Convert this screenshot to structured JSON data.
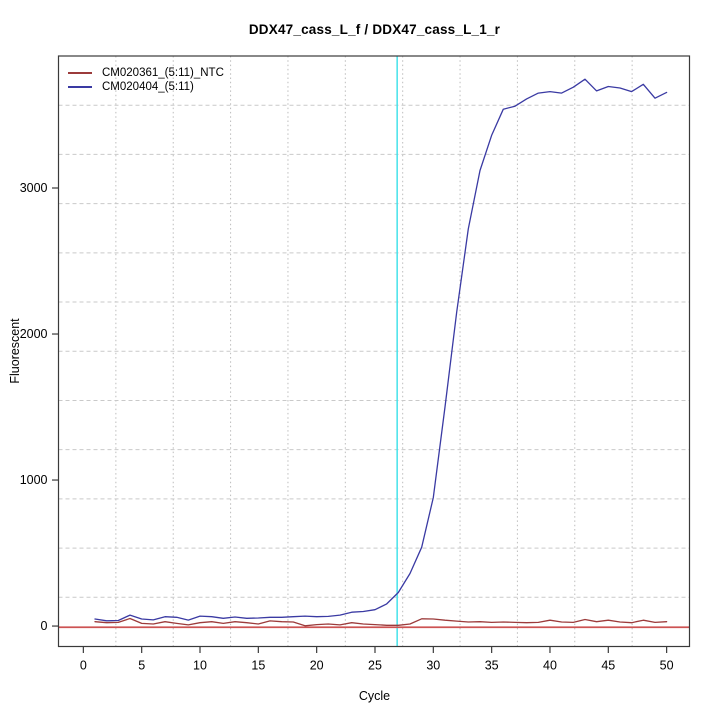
{
  "title": "DDX47_cass_L_f / DDX47_cass_L_1_r",
  "chart_data": {
    "type": "line",
    "title": "DDX47_cass_L_f / DDX47_cass_L_1_r",
    "xlabel": "Cycle",
    "ylabel": "Fluorescent",
    "x_ticks": [
      0,
      5,
      10,
      15,
      20,
      25,
      30,
      35,
      40,
      45,
      50
    ],
    "y_ticks": [
      0,
      1000,
      2000,
      3000
    ],
    "xlim": [
      -2.13,
      51.96
    ],
    "ylim": [
      -140,
      3904
    ],
    "grid": {
      "on": true,
      "vertical_cells": 11,
      "horizontal_cells": 12,
      "v_color": "#bdbdbd",
      "h_color": "#c9c9c9"
    },
    "threshold_line": {
      "value": 0,
      "color": "#cd5353"
    },
    "ct_line": {
      "cycle": 26.9,
      "color": "#45e2ea"
    },
    "legend_position": "top-left",
    "x": [
      1,
      2,
      3,
      4,
      5,
      6,
      7,
      8,
      9,
      10,
      11,
      12,
      13,
      14,
      15,
      16,
      17,
      18,
      19,
      20,
      21,
      22,
      23,
      24,
      25,
      26,
      27,
      28,
      29,
      30,
      31,
      32,
      33,
      34,
      35,
      36,
      37,
      38,
      39,
      40,
      41,
      42,
      43,
      44,
      45,
      46,
      47,
      48,
      49,
      50
    ],
    "series": [
      {
        "name": "CM020361_(5:11)_NTC",
        "color": "#9c3b3b",
        "values": [
          30,
          23,
          25,
          52,
          18,
          14,
          30,
          18,
          8,
          23,
          30,
          18,
          30,
          23,
          14,
          35,
          30,
          28,
          2,
          10,
          14,
          8,
          23,
          14,
          10,
          5,
          5,
          14,
          50,
          48,
          40,
          34,
          28,
          30,
          25,
          28,
          25,
          23,
          25,
          40,
          28,
          25,
          45,
          30,
          40,
          28,
          23,
          40,
          25,
          30
        ]
      },
      {
        "name": "CM020404_(5:11)",
        "color": "#3a3aa3",
        "values": [
          48,
          36,
          38,
          75,
          48,
          42,
          64,
          60,
          41,
          68,
          64,
          53,
          62,
          53,
          55,
          60,
          60,
          64,
          68,
          64,
          66,
          75,
          95,
          100,
          112,
          152,
          230,
          360,
          540,
          880,
          1500,
          2150,
          2720,
          3120,
          3360,
          3540,
          3560,
          3610,
          3650,
          3660,
          3650,
          3690,
          3745,
          3665,
          3695,
          3685,
          3660,
          3710,
          3615,
          3655
        ]
      }
    ]
  }
}
